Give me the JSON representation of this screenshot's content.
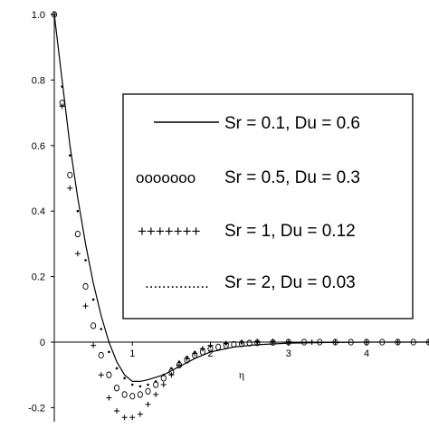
{
  "chart_data": {
    "type": "line",
    "xlabel": "η",
    "ylabel": "",
    "xlim": [
      0,
      4.8
    ],
    "ylim": [
      -0.25,
      1.0
    ],
    "grid": false,
    "legend_position": "right-center",
    "x_ticks": [
      {
        "value": 1,
        "label": "1"
      },
      {
        "value": 2,
        "label": "2"
      },
      {
        "value": 3,
        "label": "3"
      },
      {
        "value": 4,
        "label": "4"
      }
    ],
    "y_ticks": [
      {
        "value": 1.0,
        "label": "1.0"
      },
      {
        "value": 0.8,
        "label": "0.8"
      },
      {
        "value": 0.6,
        "label": "0.6"
      },
      {
        "value": 0.4,
        "label": "0.4"
      },
      {
        "value": 0.2,
        "label": "0.2"
      },
      {
        "value": 0,
        "label": "0"
      },
      {
        "value": -0.2,
        "label": "-0.2"
      }
    ],
    "series": [
      {
        "name": "Sr = 0.1, Du = 0.6",
        "legend_marker": "———————",
        "style": "solid",
        "x": [
          0,
          0.1,
          0.2,
          0.3,
          0.4,
          0.5,
          0.6,
          0.7,
          0.8,
          0.9,
          1.0,
          1.1,
          1.2,
          1.4,
          1.6,
          1.8,
          2.0,
          2.3,
          2.6,
          3.0,
          3.5,
          4.0,
          4.5,
          4.8
        ],
        "y": [
          1.0,
          0.8,
          0.6,
          0.44,
          0.3,
          0.18,
          0.08,
          0.0,
          -0.06,
          -0.1,
          -0.12,
          -0.12,
          -0.115,
          -0.1,
          -0.075,
          -0.05,
          -0.03,
          -0.015,
          -0.008,
          -0.003,
          -0.001,
          0.0,
          0.0,
          0.0
        ]
      },
      {
        "name": "Sr = 0.5, Du = 0.3",
        "legend_marker": "ooooooo",
        "style": "circle",
        "x": [
          0.0,
          0.1,
          0.2,
          0.3,
          0.4,
          0.5,
          0.6,
          0.7,
          0.8,
          0.9,
          1.0,
          1.1,
          1.2,
          1.3,
          1.4,
          1.5,
          1.6,
          1.7,
          1.8,
          1.9,
          2.0,
          2.1,
          2.2,
          2.3,
          2.4,
          2.5,
          2.6,
          2.8,
          3.0,
          3.2,
          3.4,
          3.6,
          3.8,
          4.0,
          4.2,
          4.4,
          4.6,
          4.8
        ],
        "y": [
          1.0,
          0.73,
          0.51,
          0.33,
          0.17,
          0.05,
          -0.04,
          -0.1,
          -0.14,
          -0.16,
          -0.165,
          -0.16,
          -0.15,
          -0.13,
          -0.11,
          -0.09,
          -0.07,
          -0.055,
          -0.04,
          -0.03,
          -0.02,
          -0.015,
          -0.01,
          -0.007,
          -0.005,
          -0.003,
          -0.002,
          -0.001,
          0.0,
          0.0,
          0.0,
          0.0,
          0.0,
          0.0,
          0.0,
          0.0,
          0.0,
          0.0
        ]
      },
      {
        "name": "Sr = 1, Du = 0.12",
        "legend_marker": "+++++++",
        "style": "plus",
        "x": [
          0.0,
          0.1,
          0.2,
          0.3,
          0.4,
          0.5,
          0.6,
          0.7,
          0.8,
          0.9,
          1.0,
          1.1,
          1.2,
          1.3,
          1.4,
          1.5,
          1.6,
          1.7,
          1.8,
          1.9,
          2.0,
          2.2,
          2.4,
          2.6,
          2.8,
          3.0,
          3.3,
          3.6,
          4.0,
          4.4,
          4.8
        ],
        "y": [
          1.0,
          0.72,
          0.47,
          0.27,
          0.11,
          -0.01,
          -0.1,
          -0.17,
          -0.21,
          -0.23,
          -0.23,
          -0.22,
          -0.19,
          -0.16,
          -0.13,
          -0.1,
          -0.07,
          -0.05,
          -0.035,
          -0.02,
          -0.01,
          -0.004,
          0.0,
          0.002,
          0.002,
          0.001,
          0.0,
          0.0,
          0.0,
          0.0,
          0.0
        ]
      },
      {
        "name": "Sr = 2, Du = 0.03",
        "legend_marker": "...............",
        "style": "dotted",
        "x": [
          0.0,
          0.1,
          0.2,
          0.3,
          0.4,
          0.5,
          0.6,
          0.7,
          0.8,
          0.9,
          1.0,
          1.1,
          1.2,
          1.3,
          1.4,
          1.5,
          1.6,
          1.7,
          1.8,
          1.9,
          2.0,
          2.2,
          2.4,
          2.6,
          2.8,
          3.0,
          3.3,
          3.6,
          4.0,
          4.4,
          4.8
        ],
        "y": [
          1.0,
          0.78,
          0.57,
          0.4,
          0.25,
          0.13,
          0.04,
          -0.03,
          -0.08,
          -0.11,
          -0.13,
          -0.135,
          -0.13,
          -0.12,
          -0.1,
          -0.08,
          -0.06,
          -0.045,
          -0.03,
          -0.02,
          -0.012,
          -0.005,
          -0.002,
          -0.001,
          0.0,
          0.0,
          0.0,
          0.0,
          0.0,
          0.0,
          0.0
        ]
      }
    ]
  }
}
